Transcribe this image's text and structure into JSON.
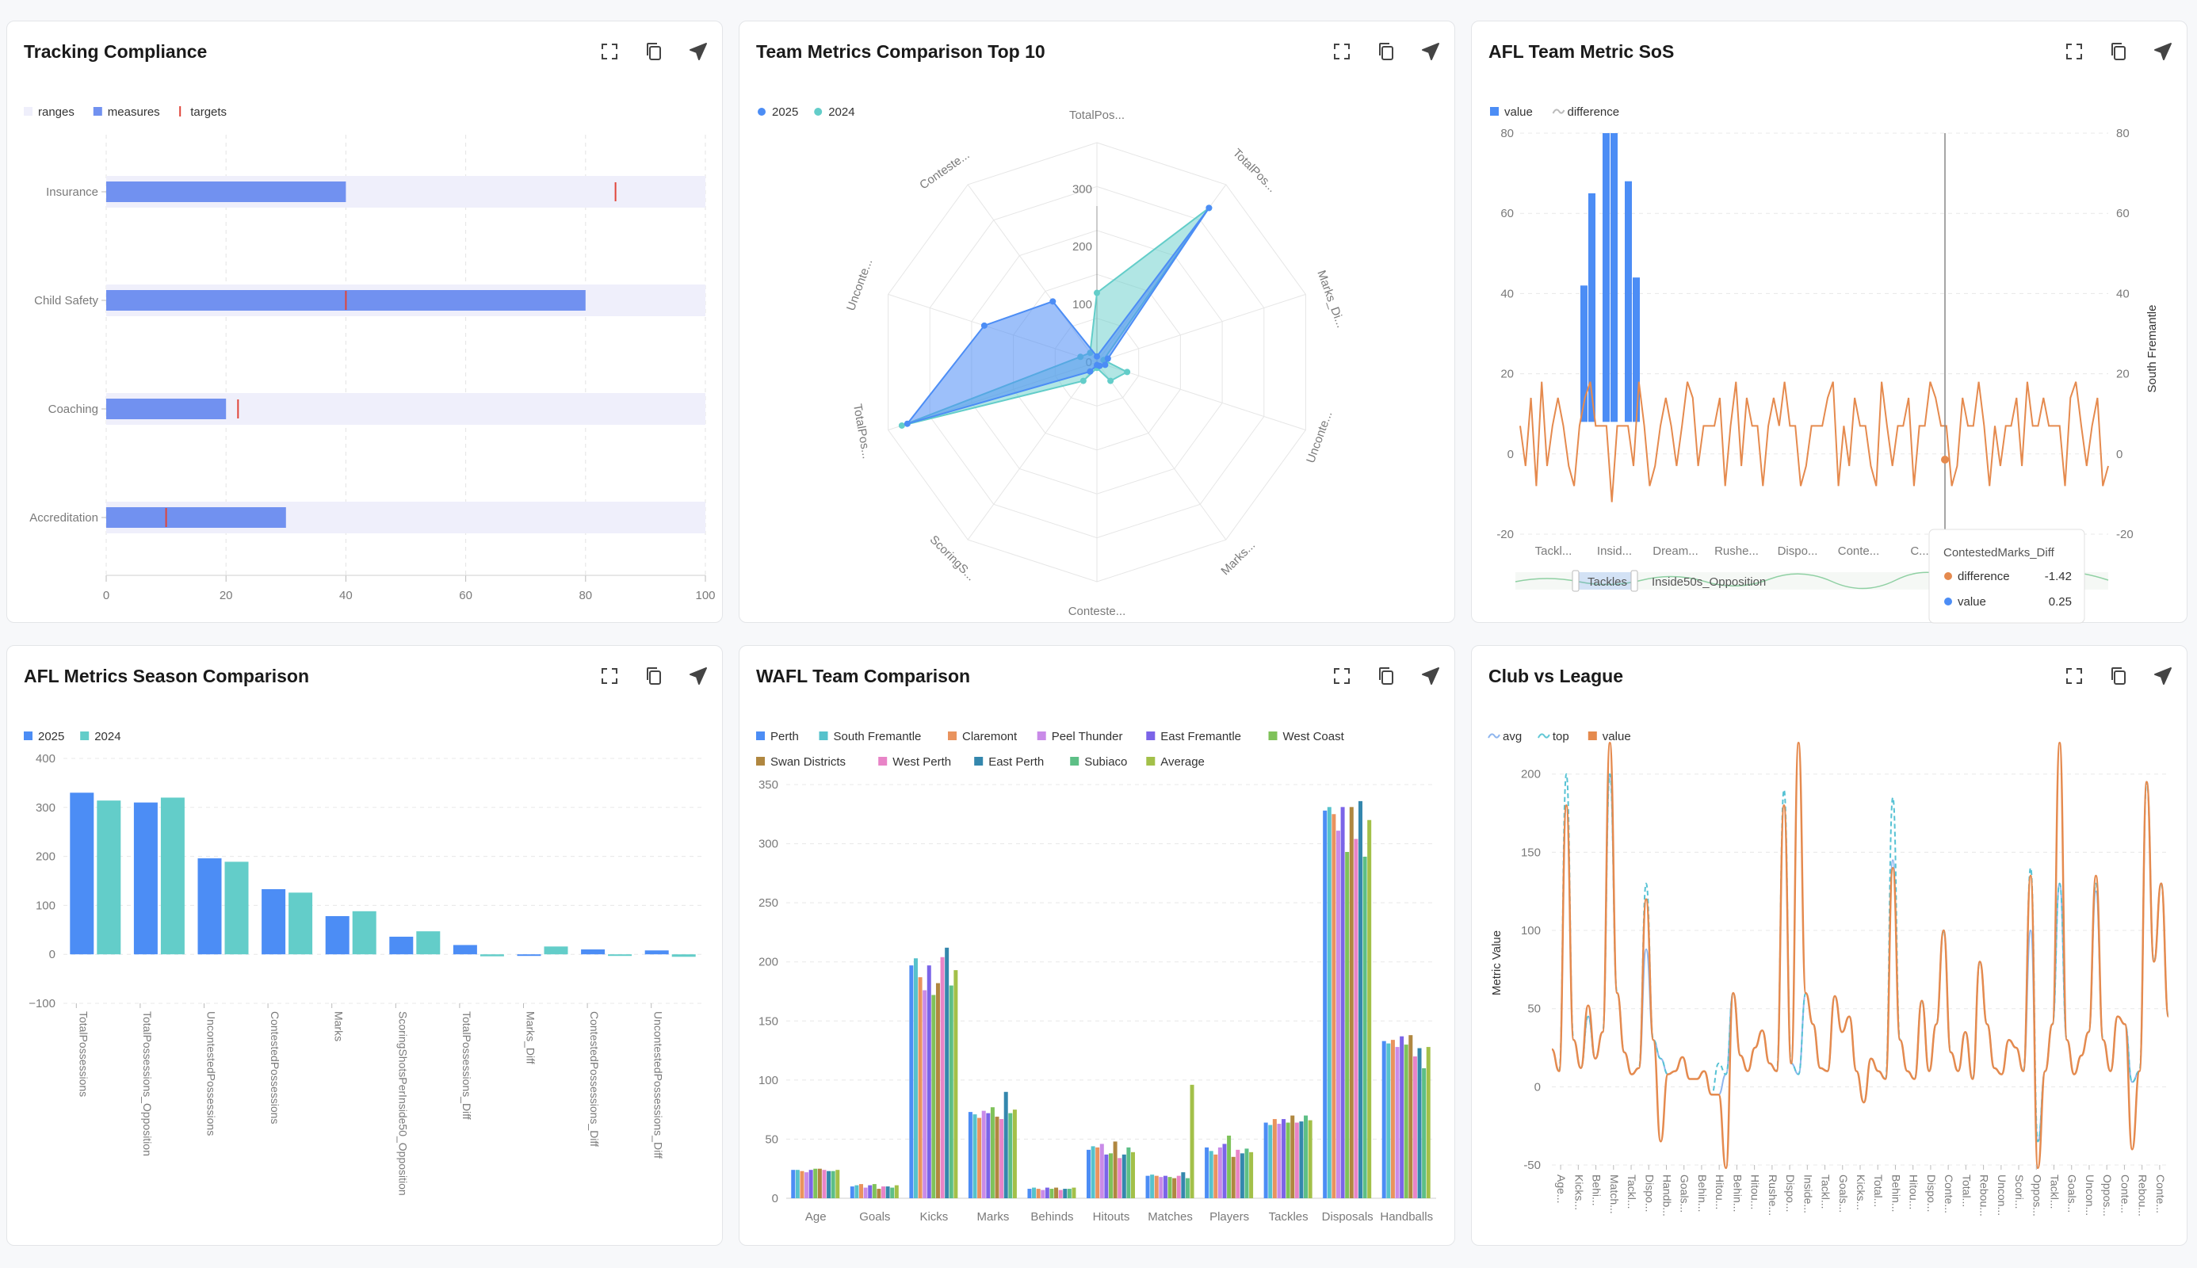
{
  "theme": {
    "blue": "#4c8df5",
    "teal": "#63cdc9",
    "orange": "#e58a4e",
    "lightblue": "#8fb6ee",
    "red": "#e0453a",
    "grid": "#e6e6e6",
    "axis": "#9a9a9a",
    "label": "#7a7a7a",
    "bullet_range": "#efeffb",
    "bullet_measure": "#7191f0"
  },
  "toolbar": {
    "icons": [
      "expand-icon",
      "copy-icon",
      "send-icon"
    ]
  },
  "cards": [
    {
      "title": "Tracking Compliance"
    },
    {
      "title": "Team Metrics Comparison Top 10"
    },
    {
      "title": "AFL Team Metric SoS"
    },
    {
      "title": "AFL Metrics Season Comparison"
    },
    {
      "title": "WAFL Team Comparison"
    },
    {
      "title": "Club vs League"
    }
  ],
  "chart_data": [
    {
      "type": "bar",
      "subtype": "bullet",
      "legend": [
        "ranges",
        "measures",
        "targets"
      ],
      "categories": [
        "Insurance",
        "Child Safety",
        "Coaching",
        "Accreditation"
      ],
      "measures": [
        40,
        80,
        20,
        30
      ],
      "targets": [
        85,
        40,
        22,
        10
      ],
      "ranges": [
        100,
        100,
        100,
        100
      ],
      "xlim": [
        0,
        100
      ],
      "xticks": [
        0,
        20,
        40,
        60,
        80,
        100
      ]
    },
    {
      "type": "radar",
      "legend": [
        "2025",
        "2024"
      ],
      "axes": [
        "TotalPos...",
        "TotalPos...",
        "Marks_Di...",
        "Unconte...",
        "Marks...",
        "Conteste...",
        "ScoringS...",
        "TotalPos...",
        "Unconte...",
        "Conteste..."
      ],
      "rticks": [
        0,
        100,
        200,
        300
      ],
      "rmax": 380,
      "series": [
        {
          "name": "2025",
          "values": [
            10,
            330,
            20,
            15,
            8,
            5,
            20,
            345,
            205,
            130
          ]
        },
        {
          "name": "2024",
          "values": [
            120,
            330,
            12,
            55,
            40,
            10,
            40,
            355,
            30,
            20
          ]
        }
      ]
    },
    {
      "type": "bar",
      "subtype": "bar+line",
      "legend": [
        "value",
        "difference"
      ],
      "xticks": [
        "Tackl...",
        "Insid...",
        "Dream...",
        "Rushe...",
        "Dispo...",
        "Conte...",
        "C..."
      ],
      "yticks": [
        -20,
        0,
        20,
        40,
        60,
        80
      ],
      "ylim": [
        -20,
        80
      ],
      "right_axis_label": "South Fremantle",
      "bars": [
        42,
        65,
        80,
        80,
        68,
        44
      ],
      "tooltip": {
        "title": "ContestedMarks_Diff",
        "rows": [
          {
            "label": "difference",
            "value": "-1.42"
          },
          {
            "label": "value",
            "value": "0.25"
          }
        ]
      },
      "slider_labels": [
        "Tackles",
        "Inside50s_Opposition"
      ]
    },
    {
      "type": "bar",
      "legend": [
        "2025",
        "2024"
      ],
      "categories": [
        "TotalPossessions",
        "TotalPossessions_Opposition",
        "UncontestedPossessions",
        "ContestedPossessions",
        "Marks",
        "ScoringShotsPerInside50_Opposition",
        "TotalPossessions_Diff",
        "Marks_Diff",
        "ContestedPossessions_Diff",
        "UncontestedPossessions_Diff"
      ],
      "series": [
        {
          "name": "2025",
          "values": [
            330,
            310,
            196,
            133,
            78,
            36,
            19,
            -2,
            10,
            8
          ]
        },
        {
          "name": "2024",
          "values": [
            314,
            320,
            189,
            126,
            88,
            47,
            -4,
            16,
            -2,
            -5
          ]
        }
      ],
      "ylim": [
        -100,
        400
      ],
      "yticks": [
        -100,
        0,
        100,
        200,
        300,
        400
      ]
    },
    {
      "type": "bar",
      "legend": [
        "Perth",
        "South Fremantle",
        "Claremont",
        "Peel Thunder",
        "East Fremantle",
        "West Coast",
        "Swan Districts",
        "West Perth",
        "East Perth",
        "Subiaco",
        "Average"
      ],
      "colors": [
        "#4c8df5",
        "#56c2cc",
        "#e9935e",
        "#c98be8",
        "#7b64e8",
        "#7fc25a",
        "#b08740",
        "#e884c7",
        "#3487ad",
        "#5dbf86",
        "#a3c049"
      ],
      "categories": [
        "Age",
        "Goals",
        "Kicks",
        "Marks",
        "Behinds",
        "Hitouts",
        "Matches",
        "Players",
        "Tackles",
        "Disposals",
        "Handballs"
      ],
      "values": [
        [
          24,
          24,
          23,
          22,
          24,
          25,
          25,
          24,
          23,
          23,
          24
        ],
        [
          10,
          11,
          12,
          9,
          11,
          12,
          8,
          10,
          10,
          9,
          11
        ],
        [
          197,
          203,
          187,
          176,
          197,
          172,
          182,
          204,
          212,
          180,
          193
        ],
        [
          73,
          71,
          68,
          74,
          72,
          77,
          69,
          67,
          90,
          72,
          75
        ],
        [
          8,
          9,
          8,
          7,
          9,
          8,
          9,
          7,
          8,
          8,
          9
        ],
        [
          41,
          44,
          43,
          46,
          37,
          38,
          48,
          34,
          37,
          43,
          39
        ],
        [
          19,
          20,
          19,
          18,
          19,
          18,
          17,
          19,
          22,
          17,
          96
        ],
        [
          43,
          40,
          37,
          43,
          46,
          53,
          35,
          41,
          38,
          42,
          39
        ],
        [
          64,
          62,
          67,
          63,
          67,
          64,
          70,
          64,
          65,
          70,
          66
        ],
        [
          328,
          331,
          325,
          311,
          331,
          293,
          331,
          304,
          336,
          289,
          320
        ],
        [
          133,
          131,
          134,
          128,
          137,
          130,
          138,
          120,
          127,
          110,
          128
        ]
      ],
      "ylim": [
        0,
        350
      ],
      "yticks": [
        0,
        50,
        100,
        150,
        200,
        250,
        300,
        350
      ]
    },
    {
      "type": "line",
      "legend": [
        "avg",
        "top",
        "value"
      ],
      "ylabel": "Metric Value",
      "ylim": [
        -50,
        210
      ],
      "yticks": [
        -50,
        0,
        50,
        100,
        150,
        200
      ],
      "xticks": [
        "Age...",
        "Kicks...",
        "Behi...",
        "Match...",
        "Tackl...",
        "Dispo...",
        "Handb...",
        "Goals...",
        "Behin...",
        "Hitou...",
        "Behin...",
        "Hitou...",
        "Rushe...",
        "Dispo...",
        "Inside...",
        "Tackl...",
        "Goals...",
        "Kicks...",
        "Total...",
        "Behin...",
        "Hitou...",
        "Dispo...",
        "Conte...",
        "Total...",
        "Rebou...",
        "Uncon...",
        "Scori...",
        "Oppos...",
        "Tackl...",
        "Goals...",
        "Uncon...",
        "Oppos...",
        "Conte...",
        "Rebou...",
        "Conte..."
      ],
      "series": [
        {
          "name": "avg",
          "values": [
            24,
            10,
            180,
            30,
            12,
            45,
            18,
            35,
            200,
            60,
            22,
            8,
            12,
            88,
            30,
            18,
            8,
            10,
            19,
            5,
            5,
            10,
            -5,
            -5,
            8,
            60,
            20,
            10,
            25,
            36,
            15,
            10,
            180,
            15,
            8,
            60,
            40,
            12,
            10,
            58,
            35,
            45,
            10,
            -10,
            18,
            10,
            5,
            145,
            30,
            10,
            5,
            55,
            10,
            40,
            100,
            22,
            10,
            35,
            5,
            80,
            40,
            12,
            8,
            30,
            25,
            10,
            100,
            -35,
            10,
            40,
            130,
            30,
            8,
            20,
            35,
            125,
            30,
            10,
            45,
            40,
            3,
            10,
            195,
            80,
            130,
            45
          ]
        },
        {
          "name": "top",
          "values": [
            24,
            10,
            200,
            30,
            12,
            45,
            18,
            35,
            200,
            60,
            22,
            8,
            12,
            130,
            30,
            18,
            8,
            10,
            19,
            5,
            5,
            10,
            -5,
            15,
            8,
            60,
            20,
            10,
            25,
            36,
            15,
            10,
            190,
            15,
            8,
            60,
            40,
            12,
            10,
            58,
            35,
            45,
            10,
            -10,
            18,
            10,
            5,
            185,
            30,
            10,
            5,
            55,
            10,
            40,
            100,
            22,
            10,
            35,
            5,
            80,
            40,
            12,
            8,
            30,
            25,
            10,
            140,
            -35,
            10,
            40,
            130,
            30,
            8,
            20,
            35,
            130,
            30,
            10,
            45,
            40,
            3,
            10,
            195,
            80,
            130,
            45
          ]
        },
        {
          "name": "value",
          "values": [
            24,
            10,
            180,
            30,
            12,
            52,
            18,
            35,
            220,
            60,
            22,
            8,
            12,
            120,
            30,
            -35,
            8,
            10,
            19,
            5,
            5,
            10,
            -5,
            -5,
            -52,
            60,
            20,
            10,
            25,
            36,
            15,
            10,
            180,
            15,
            220,
            60,
            40,
            12,
            10,
            58,
            35,
            45,
            10,
            -10,
            18,
            10,
            5,
            140,
            30,
            10,
            5,
            55,
            10,
            40,
            100,
            22,
            10,
            35,
            5,
            80,
            40,
            12,
            8,
            30,
            25,
            10,
            135,
            -52,
            10,
            40,
            220,
            30,
            8,
            20,
            35,
            135,
            30,
            10,
            45,
            40,
            -40,
            10,
            195,
            80,
            130,
            45
          ]
        }
      ]
    }
  ]
}
